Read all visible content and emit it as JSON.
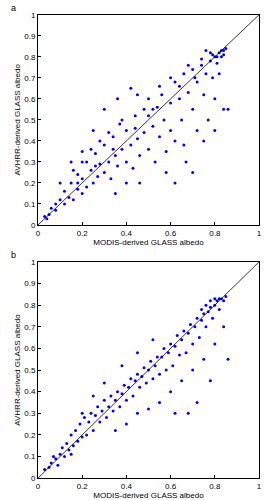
{
  "chart_data": [
    {
      "type": "scatter",
      "title": "a",
      "xlabel": "MODIS-derived GLASS albedo",
      "ylabel": "AVHRR-derived GLASS albedo",
      "xlim": [
        0,
        1
      ],
      "ylim": [
        0,
        1
      ],
      "xticks": [
        0,
        0.2,
        0.4,
        0.6,
        0.8,
        1
      ],
      "yticks": [
        0,
        0.1,
        0.2,
        0.3,
        0.4,
        0.5,
        0.6,
        0.7,
        0.8,
        0.9,
        1
      ],
      "grid": false,
      "series": [
        {
          "type": "scatter",
          "color": "#0000ff",
          "marker": "dot",
          "x": [
            0.03,
            0.05,
            0.06,
            0.08,
            0.1,
            0.12,
            0.12,
            0.14,
            0.15,
            0.16,
            0.18,
            0.18,
            0.2,
            0.2,
            0.22,
            0.22,
            0.24,
            0.25,
            0.26,
            0.27,
            0.28,
            0.3,
            0.3,
            0.32,
            0.33,
            0.34,
            0.35,
            0.36,
            0.37,
            0.38,
            0.4,
            0.4,
            0.42,
            0.43,
            0.44,
            0.45,
            0.46,
            0.48,
            0.48,
            0.5,
            0.5,
            0.52,
            0.53,
            0.54,
            0.55,
            0.56,
            0.57,
            0.58,
            0.6,
            0.6,
            0.62,
            0.62,
            0.64,
            0.65,
            0.66,
            0.67,
            0.68,
            0.7,
            0.7,
            0.72,
            0.72,
            0.74,
            0.75,
            0.76,
            0.77,
            0.78,
            0.79,
            0.8,
            0.8,
            0.81,
            0.82,
            0.82,
            0.83,
            0.84,
            0.85,
            0.84,
            0.78,
            0.74,
            0.68,
            0.6,
            0.55,
            0.5,
            0.45,
            0.38,
            0.32,
            0.28,
            0.24,
            0.2,
            0.16,
            0.1,
            0.36,
            0.42,
            0.3,
            0.25,
            0.66,
            0.7,
            0.75,
            0.62,
            0.8,
            0.86,
            0.58,
            0.46,
            0.2,
            0.15,
            0.35,
            0.4,
            0.76,
            0.79,
            0.81,
            0.83,
            0.84,
            0.71,
            0.64,
            0.52,
            0.44,
            0.34,
            0.26,
            0.18,
            0.08,
            0.04
          ],
          "values": [
            0.04,
            0.05,
            0.08,
            0.07,
            0.12,
            0.1,
            0.16,
            0.13,
            0.2,
            0.12,
            0.17,
            0.24,
            0.15,
            0.22,
            0.3,
            0.18,
            0.26,
            0.2,
            0.34,
            0.23,
            0.29,
            0.25,
            0.38,
            0.3,
            0.22,
            0.42,
            0.33,
            0.28,
            0.48,
            0.36,
            0.3,
            0.45,
            0.38,
            0.27,
            0.52,
            0.41,
            0.33,
            0.55,
            0.44,
            0.36,
            0.6,
            0.47,
            0.3,
            0.56,
            0.42,
            0.62,
            0.5,
            0.35,
            0.58,
            0.45,
            0.68,
            0.4,
            0.6,
            0.5,
            0.72,
            0.3,
            0.63,
            0.55,
            0.74,
            0.68,
            0.45,
            0.76,
            0.62,
            0.72,
            0.5,
            0.78,
            0.7,
            0.8,
            0.6,
            0.77,
            0.82,
            0.72,
            0.83,
            0.81,
            0.84,
            0.55,
            0.82,
            0.79,
            0.76,
            0.7,
            0.66,
            0.52,
            0.62,
            0.5,
            0.44,
            0.4,
            0.36,
            0.3,
            0.26,
            0.2,
            0.6,
            0.65,
            0.55,
            0.45,
            0.38,
            0.25,
            0.4,
            0.2,
            0.45,
            0.55,
            0.25,
            0.2,
            0.35,
            0.3,
            0.15,
            0.2,
            0.83,
            0.81,
            0.8,
            0.8,
            0.83,
            0.7,
            0.66,
            0.55,
            0.46,
            0.36,
            0.28,
            0.2,
            0.1,
            0.03
          ]
        },
        {
          "type": "line",
          "color": "#000000",
          "line_style": "solid",
          "x": [
            0,
            1
          ],
          "values": [
            0,
            1
          ]
        }
      ]
    },
    {
      "type": "scatter",
      "title": "b",
      "xlabel": "MODIS-derived GLASS albedo",
      "ylabel": "AVHRR-derived GLASS albedo",
      "xlim": [
        0,
        1
      ],
      "ylim": [
        0,
        1
      ],
      "xticks": [
        0,
        0.2,
        0.4,
        0.6,
        0.8,
        1
      ],
      "yticks": [
        0,
        0.1,
        0.2,
        0.3,
        0.4,
        0.5,
        0.6,
        0.7,
        0.8,
        0.9,
        1
      ],
      "grid": false,
      "series": [
        {
          "type": "scatter",
          "color": "#0000ff",
          "marker": "dot",
          "x": [
            0.03,
            0.05,
            0.06,
            0.08,
            0.1,
            0.11,
            0.12,
            0.13,
            0.14,
            0.15,
            0.16,
            0.17,
            0.18,
            0.19,
            0.2,
            0.21,
            0.22,
            0.23,
            0.24,
            0.25,
            0.26,
            0.27,
            0.28,
            0.29,
            0.3,
            0.31,
            0.32,
            0.33,
            0.34,
            0.35,
            0.36,
            0.37,
            0.38,
            0.39,
            0.4,
            0.41,
            0.42,
            0.43,
            0.44,
            0.45,
            0.46,
            0.47,
            0.48,
            0.49,
            0.5,
            0.51,
            0.52,
            0.53,
            0.54,
            0.55,
            0.56,
            0.57,
            0.58,
            0.59,
            0.6,
            0.61,
            0.62,
            0.63,
            0.64,
            0.65,
            0.66,
            0.67,
            0.68,
            0.69,
            0.7,
            0.71,
            0.72,
            0.73,
            0.74,
            0.75,
            0.76,
            0.77,
            0.78,
            0.79,
            0.8,
            0.81,
            0.82,
            0.83,
            0.84,
            0.85,
            0.8,
            0.75,
            0.7,
            0.65,
            0.6,
            0.62,
            0.72,
            0.78,
            0.68,
            0.55,
            0.5,
            0.45,
            0.4,
            0.35,
            0.3,
            0.25,
            0.2,
            0.38,
            0.45,
            0.52,
            0.86,
            0.84,
            0.82,
            0.8,
            0.78,
            0.76,
            0.74,
            0.15,
            0.09,
            0.07
          ],
          "values": [
            0.04,
            0.05,
            0.07,
            0.09,
            0.11,
            0.14,
            0.1,
            0.16,
            0.13,
            0.2,
            0.15,
            0.22,
            0.17,
            0.25,
            0.19,
            0.28,
            0.2,
            0.26,
            0.3,
            0.22,
            0.29,
            0.33,
            0.26,
            0.31,
            0.36,
            0.28,
            0.33,
            0.38,
            0.31,
            0.36,
            0.4,
            0.33,
            0.39,
            0.43,
            0.36,
            0.42,
            0.46,
            0.38,
            0.45,
            0.48,
            0.42,
            0.47,
            0.51,
            0.44,
            0.5,
            0.54,
            0.46,
            0.52,
            0.56,
            0.48,
            0.56,
            0.6,
            0.5,
            0.58,
            0.62,
            0.52,
            0.61,
            0.66,
            0.57,
            0.64,
            0.68,
            0.58,
            0.67,
            0.71,
            0.62,
            0.7,
            0.74,
            0.65,
            0.73,
            0.76,
            0.7,
            0.77,
            0.79,
            0.74,
            0.8,
            0.82,
            0.78,
            0.83,
            0.82,
            0.84,
            0.62,
            0.55,
            0.5,
            0.45,
            0.4,
            0.3,
            0.35,
            0.45,
            0.3,
            0.35,
            0.32,
            0.3,
            0.25,
            0.22,
            0.44,
            0.38,
            0.3,
            0.52,
            0.58,
            0.64,
            0.55,
            0.7,
            0.83,
            0.83,
            0.82,
            0.8,
            0.78,
            0.11,
            0.06,
            0.1
          ]
        },
        {
          "type": "line",
          "color": "#000000",
          "line_style": "solid",
          "x": [
            0,
            1
          ],
          "values": [
            0,
            1
          ]
        }
      ]
    }
  ]
}
